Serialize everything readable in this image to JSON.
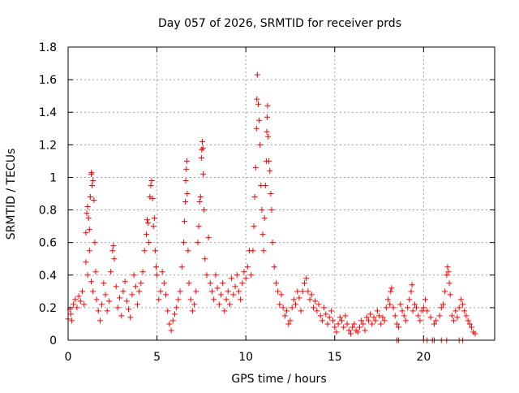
{
  "chart_data": {
    "type": "scatter",
    "title": "Day 057 of 2026, SRMTID for receiver prds",
    "xlabel": "GPS time / hours",
    "ylabel": "SRMTID / TECUs",
    "xlim": [
      0,
      24
    ],
    "ylim": [
      0,
      1.8
    ],
    "x_ticks": [
      0,
      5,
      10,
      15,
      20
    ],
    "x_tick_labels": [
      "0",
      "5",
      "10",
      "15",
      "20"
    ],
    "y_ticks": [
      0,
      0.2,
      0.4,
      0.6,
      0.8,
      1.0,
      1.2,
      1.4,
      1.6,
      1.8
    ],
    "y_tick_labels": [
      "0",
      "0.2",
      "0.4",
      "0.6",
      "0.8",
      "1",
      "1.2",
      "1.4",
      "1.6",
      "1.8"
    ],
    "grid": true,
    "marker": "+",
    "series": [
      {
        "name": "SRMTID",
        "color": "#ff0000",
        "points": [
          [
            0.0,
            0.13
          ],
          [
            0.1,
            0.19
          ],
          [
            0.15,
            0.16
          ],
          [
            0.2,
            0.12
          ],
          [
            0.3,
            0.22
          ],
          [
            0.4,
            0.25
          ],
          [
            0.5,
            0.2
          ],
          [
            0.6,
            0.27
          ],
          [
            0.7,
            0.24
          ],
          [
            0.8,
            0.3
          ],
          [
            0.9,
            0.22
          ],
          [
            1.0,
            0.66
          ],
          [
            1.05,
            0.78
          ],
          [
            1.1,
            0.82
          ],
          [
            1.15,
            0.75
          ],
          [
            1.2,
            0.68
          ],
          [
            1.25,
            0.88
          ],
          [
            1.3,
            1.02
          ],
          [
            1.32,
            1.03
          ],
          [
            1.35,
            0.95
          ],
          [
            1.4,
            0.98
          ],
          [
            1.45,
            0.86
          ],
          [
            1.5,
            0.6
          ],
          [
            1.0,
            0.48
          ],
          [
            1.1,
            0.4
          ],
          [
            1.2,
            0.55
          ],
          [
            1.3,
            0.36
          ],
          [
            1.4,
            0.3
          ],
          [
            1.55,
            0.42
          ],
          [
            1.6,
            0.25
          ],
          [
            1.7,
            0.18
          ],
          [
            1.8,
            0.12
          ],
          [
            1.9,
            0.22
          ],
          [
            2.0,
            0.35
          ],
          [
            2.1,
            0.28
          ],
          [
            2.2,
            0.18
          ],
          [
            2.3,
            0.24
          ],
          [
            2.4,
            0.42
          ],
          [
            2.5,
            0.55
          ],
          [
            2.55,
            0.58
          ],
          [
            2.6,
            0.5
          ],
          [
            2.7,
            0.33
          ],
          [
            2.8,
            0.2
          ],
          [
            2.9,
            0.26
          ],
          [
            3.0,
            0.15
          ],
          [
            3.1,
            0.3
          ],
          [
            3.2,
            0.36
          ],
          [
            3.3,
            0.24
          ],
          [
            3.4,
            0.19
          ],
          [
            3.5,
            0.14
          ],
          [
            3.6,
            0.28
          ],
          [
            3.7,
            0.4
          ],
          [
            3.8,
            0.33
          ],
          [
            3.9,
            0.22
          ],
          [
            4.0,
            0.3
          ],
          [
            4.1,
            0.35
          ],
          [
            4.2,
            0.42
          ],
          [
            4.3,
            0.55
          ],
          [
            4.4,
            0.65
          ],
          [
            4.45,
            0.74
          ],
          [
            4.5,
            0.72
          ],
          [
            4.55,
            0.6
          ],
          [
            4.6,
            0.88
          ],
          [
            4.65,
            0.95
          ],
          [
            4.7,
            0.98
          ],
          [
            4.75,
            0.87
          ],
          [
            4.8,
            0.7
          ],
          [
            4.85,
            0.75
          ],
          [
            4.9,
            0.55
          ],
          [
            4.95,
            0.45
          ],
          [
            5.0,
            0.4
          ],
          [
            5.1,
            0.25
          ],
          [
            5.2,
            0.3
          ],
          [
            5.3,
            0.42
          ],
          [
            5.4,
            0.35
          ],
          [
            5.5,
            0.28
          ],
          [
            5.6,
            0.18
          ],
          [
            5.7,
            0.1
          ],
          [
            5.8,
            0.06
          ],
          [
            5.9,
            0.12
          ],
          [
            6.0,
            0.16
          ],
          [
            6.1,
            0.2
          ],
          [
            6.2,
            0.25
          ],
          [
            6.3,
            0.3
          ],
          [
            6.4,
            0.45
          ],
          [
            6.5,
            0.6
          ],
          [
            6.55,
            0.73
          ],
          [
            6.6,
            0.85
          ],
          [
            6.62,
            0.98
          ],
          [
            6.65,
            1.05
          ],
          [
            6.68,
            1.1
          ],
          [
            6.7,
            0.9
          ],
          [
            6.75,
            0.55
          ],
          [
            6.8,
            0.35
          ],
          [
            6.9,
            0.25
          ],
          [
            7.0,
            0.18
          ],
          [
            7.1,
            0.22
          ],
          [
            7.2,
            0.3
          ],
          [
            7.3,
            0.6
          ],
          [
            7.35,
            0.7
          ],
          [
            7.4,
            0.85
          ],
          [
            7.45,
            0.88
          ],
          [
            7.5,
            1.12
          ],
          [
            7.52,
            1.17
          ],
          [
            7.55,
            1.22
          ],
          [
            7.58,
            1.18
          ],
          [
            7.6,
            1.02
          ],
          [
            7.65,
            0.8
          ],
          [
            7.7,
            0.5
          ],
          [
            7.8,
            0.4
          ],
          [
            7.9,
            0.63
          ],
          [
            8.0,
            0.35
          ],
          [
            8.1,
            0.3
          ],
          [
            8.2,
            0.25
          ],
          [
            8.3,
            0.4
          ],
          [
            8.4,
            0.32
          ],
          [
            8.5,
            0.22
          ],
          [
            8.6,
            0.28
          ],
          [
            8.7,
            0.35
          ],
          [
            8.8,
            0.18
          ],
          [
            8.9,
            0.25
          ],
          [
            9.0,
            0.3
          ],
          [
            9.1,
            0.22
          ],
          [
            9.2,
            0.38
          ],
          [
            9.3,
            0.28
          ],
          [
            9.4,
            0.33
          ],
          [
            9.5,
            0.4
          ],
          [
            9.6,
            0.3
          ],
          [
            9.7,
            0.25
          ],
          [
            9.8,
            0.35
          ],
          [
            9.9,
            0.42
          ],
          [
            10.0,
            0.38
          ],
          [
            10.1,
            0.45
          ],
          [
            10.2,
            0.55
          ],
          [
            10.3,
            0.4
          ],
          [
            10.4,
            0.55
          ],
          [
            10.45,
            0.7
          ],
          [
            10.5,
            0.88
          ],
          [
            10.55,
            1.06
          ],
          [
            10.6,
            1.3
          ],
          [
            10.62,
            1.48
          ],
          [
            10.65,
            1.63
          ],
          [
            10.7,
            1.45
          ],
          [
            10.75,
            1.35
          ],
          [
            10.8,
            1.2
          ],
          [
            10.85,
            0.95
          ],
          [
            10.9,
            0.8
          ],
          [
            10.95,
            0.65
          ],
          [
            11.0,
            0.55
          ],
          [
            11.05,
            0.75
          ],
          [
            11.1,
            0.95
          ],
          [
            11.15,
            1.1
          ],
          [
            11.18,
            1.28
          ],
          [
            11.2,
            1.37
          ],
          [
            11.22,
            1.44
          ],
          [
            11.25,
            1.25
          ],
          [
            11.3,
            1.1
          ],
          [
            11.35,
            1.04
          ],
          [
            11.4,
            0.9
          ],
          [
            11.45,
            0.8
          ],
          [
            11.5,
            0.6
          ],
          [
            11.6,
            0.45
          ],
          [
            11.7,
            0.35
          ],
          [
            11.8,
            0.3
          ],
          [
            11.9,
            0.22
          ],
          [
            12.0,
            0.28
          ],
          [
            12.1,
            0.2
          ],
          [
            12.2,
            0.15
          ],
          [
            12.3,
            0.18
          ],
          [
            12.4,
            0.1
          ],
          [
            12.5,
            0.12
          ],
          [
            12.6,
            0.2
          ],
          [
            12.7,
            0.25
          ],
          [
            12.8,
            0.22
          ],
          [
            12.9,
            0.3
          ],
          [
            13.0,
            0.26
          ],
          [
            13.1,
            0.18
          ],
          [
            13.2,
            0.3
          ],
          [
            13.3,
            0.35
          ],
          [
            13.4,
            0.38
          ],
          [
            13.5,
            0.3
          ],
          [
            13.6,
            0.25
          ],
          [
            13.7,
            0.28
          ],
          [
            13.8,
            0.2
          ],
          [
            13.9,
            0.24
          ],
          [
            14.0,
            0.18
          ],
          [
            14.1,
            0.22
          ],
          [
            14.2,
            0.15
          ],
          [
            14.3,
            0.12
          ],
          [
            14.4,
            0.2
          ],
          [
            14.5,
            0.16
          ],
          [
            14.6,
            0.1
          ],
          [
            14.7,
            0.14
          ],
          [
            14.8,
            0.18
          ],
          [
            14.9,
            0.12
          ],
          [
            15.0,
            0.08
          ],
          [
            15.1,
            0.05
          ],
          [
            15.2,
            0.1
          ],
          [
            15.3,
            0.14
          ],
          [
            15.4,
            0.12
          ],
          [
            15.5,
            0.08
          ],
          [
            15.6,
            0.15
          ],
          [
            15.7,
            0.1
          ],
          [
            15.8,
            0.06
          ],
          [
            15.9,
            0.04
          ],
          [
            16.0,
            0.08
          ],
          [
            16.1,
            0.1
          ],
          [
            16.2,
            0.06
          ],
          [
            16.3,
            0.05
          ],
          [
            16.4,
            0.08
          ],
          [
            16.5,
            0.12
          ],
          [
            16.6,
            0.1
          ],
          [
            16.7,
            0.06
          ],
          [
            16.8,
            0.14
          ],
          [
            16.9,
            0.12
          ],
          [
            17.0,
            0.16
          ],
          [
            17.1,
            0.1
          ],
          [
            17.2,
            0.14
          ],
          [
            17.3,
            0.12
          ],
          [
            17.4,
            0.18
          ],
          [
            17.5,
            0.15
          ],
          [
            17.6,
            0.1
          ],
          [
            17.7,
            0.14
          ],
          [
            17.8,
            0.12
          ],
          [
            17.9,
            0.2
          ],
          [
            18.0,
            0.25
          ],
          [
            18.1,
            0.22
          ],
          [
            18.15,
            0.3
          ],
          [
            18.2,
            0.32
          ],
          [
            18.3,
            0.2
          ],
          [
            18.4,
            0.15
          ],
          [
            18.5,
            0.1
          ],
          [
            18.6,
            0.08
          ],
          [
            18.7,
            0.22
          ],
          [
            18.8,
            0.18
          ],
          [
            18.9,
            0.15
          ],
          [
            19.0,
            0.12
          ],
          [
            19.1,
            0.2
          ],
          [
            19.2,
            0.25
          ],
          [
            19.3,
            0.3
          ],
          [
            19.35,
            0.34
          ],
          [
            19.4,
            0.18
          ],
          [
            19.5,
            0.22
          ],
          [
            19.6,
            0.2
          ],
          [
            19.7,
            0.15
          ],
          [
            19.8,
            0.12
          ],
          [
            19.9,
            0.18
          ],
          [
            20.0,
            0.2
          ],
          [
            20.1,
            0.25
          ],
          [
            20.2,
            0.18
          ],
          [
            20.4,
            0.14
          ],
          [
            20.6,
            0.1
          ],
          [
            20.7,
            0.12
          ],
          [
            20.9,
            0.15
          ],
          [
            21.0,
            0.2
          ],
          [
            21.1,
            0.22
          ],
          [
            21.2,
            0.3
          ],
          [
            21.3,
            0.4
          ],
          [
            21.35,
            0.45
          ],
          [
            21.4,
            0.42
          ],
          [
            21.45,
            0.35
          ],
          [
            21.5,
            0.28
          ],
          [
            21.6,
            0.15
          ],
          [
            21.7,
            0.12
          ],
          [
            21.8,
            0.18
          ],
          [
            21.9,
            0.14
          ],
          [
            22.0,
            0.2
          ],
          [
            22.1,
            0.25
          ],
          [
            22.2,
            0.22
          ],
          [
            22.3,
            0.18
          ],
          [
            22.4,
            0.15
          ],
          [
            22.5,
            0.12
          ],
          [
            22.6,
            0.1
          ],
          [
            22.7,
            0.08
          ],
          [
            22.8,
            0.05
          ],
          [
            22.9,
            0.04
          ],
          [
            18.5,
            0.0
          ],
          [
            18.6,
            0.0
          ],
          [
            20.0,
            0.0
          ],
          [
            20.2,
            0.0
          ],
          [
            20.5,
            0.0
          ],
          [
            20.6,
            0.0
          ],
          [
            21.0,
            0.0
          ],
          [
            21.3,
            0.0
          ],
          [
            22.0,
            0.0
          ],
          [
            22.2,
            0.0
          ]
        ]
      }
    ]
  }
}
